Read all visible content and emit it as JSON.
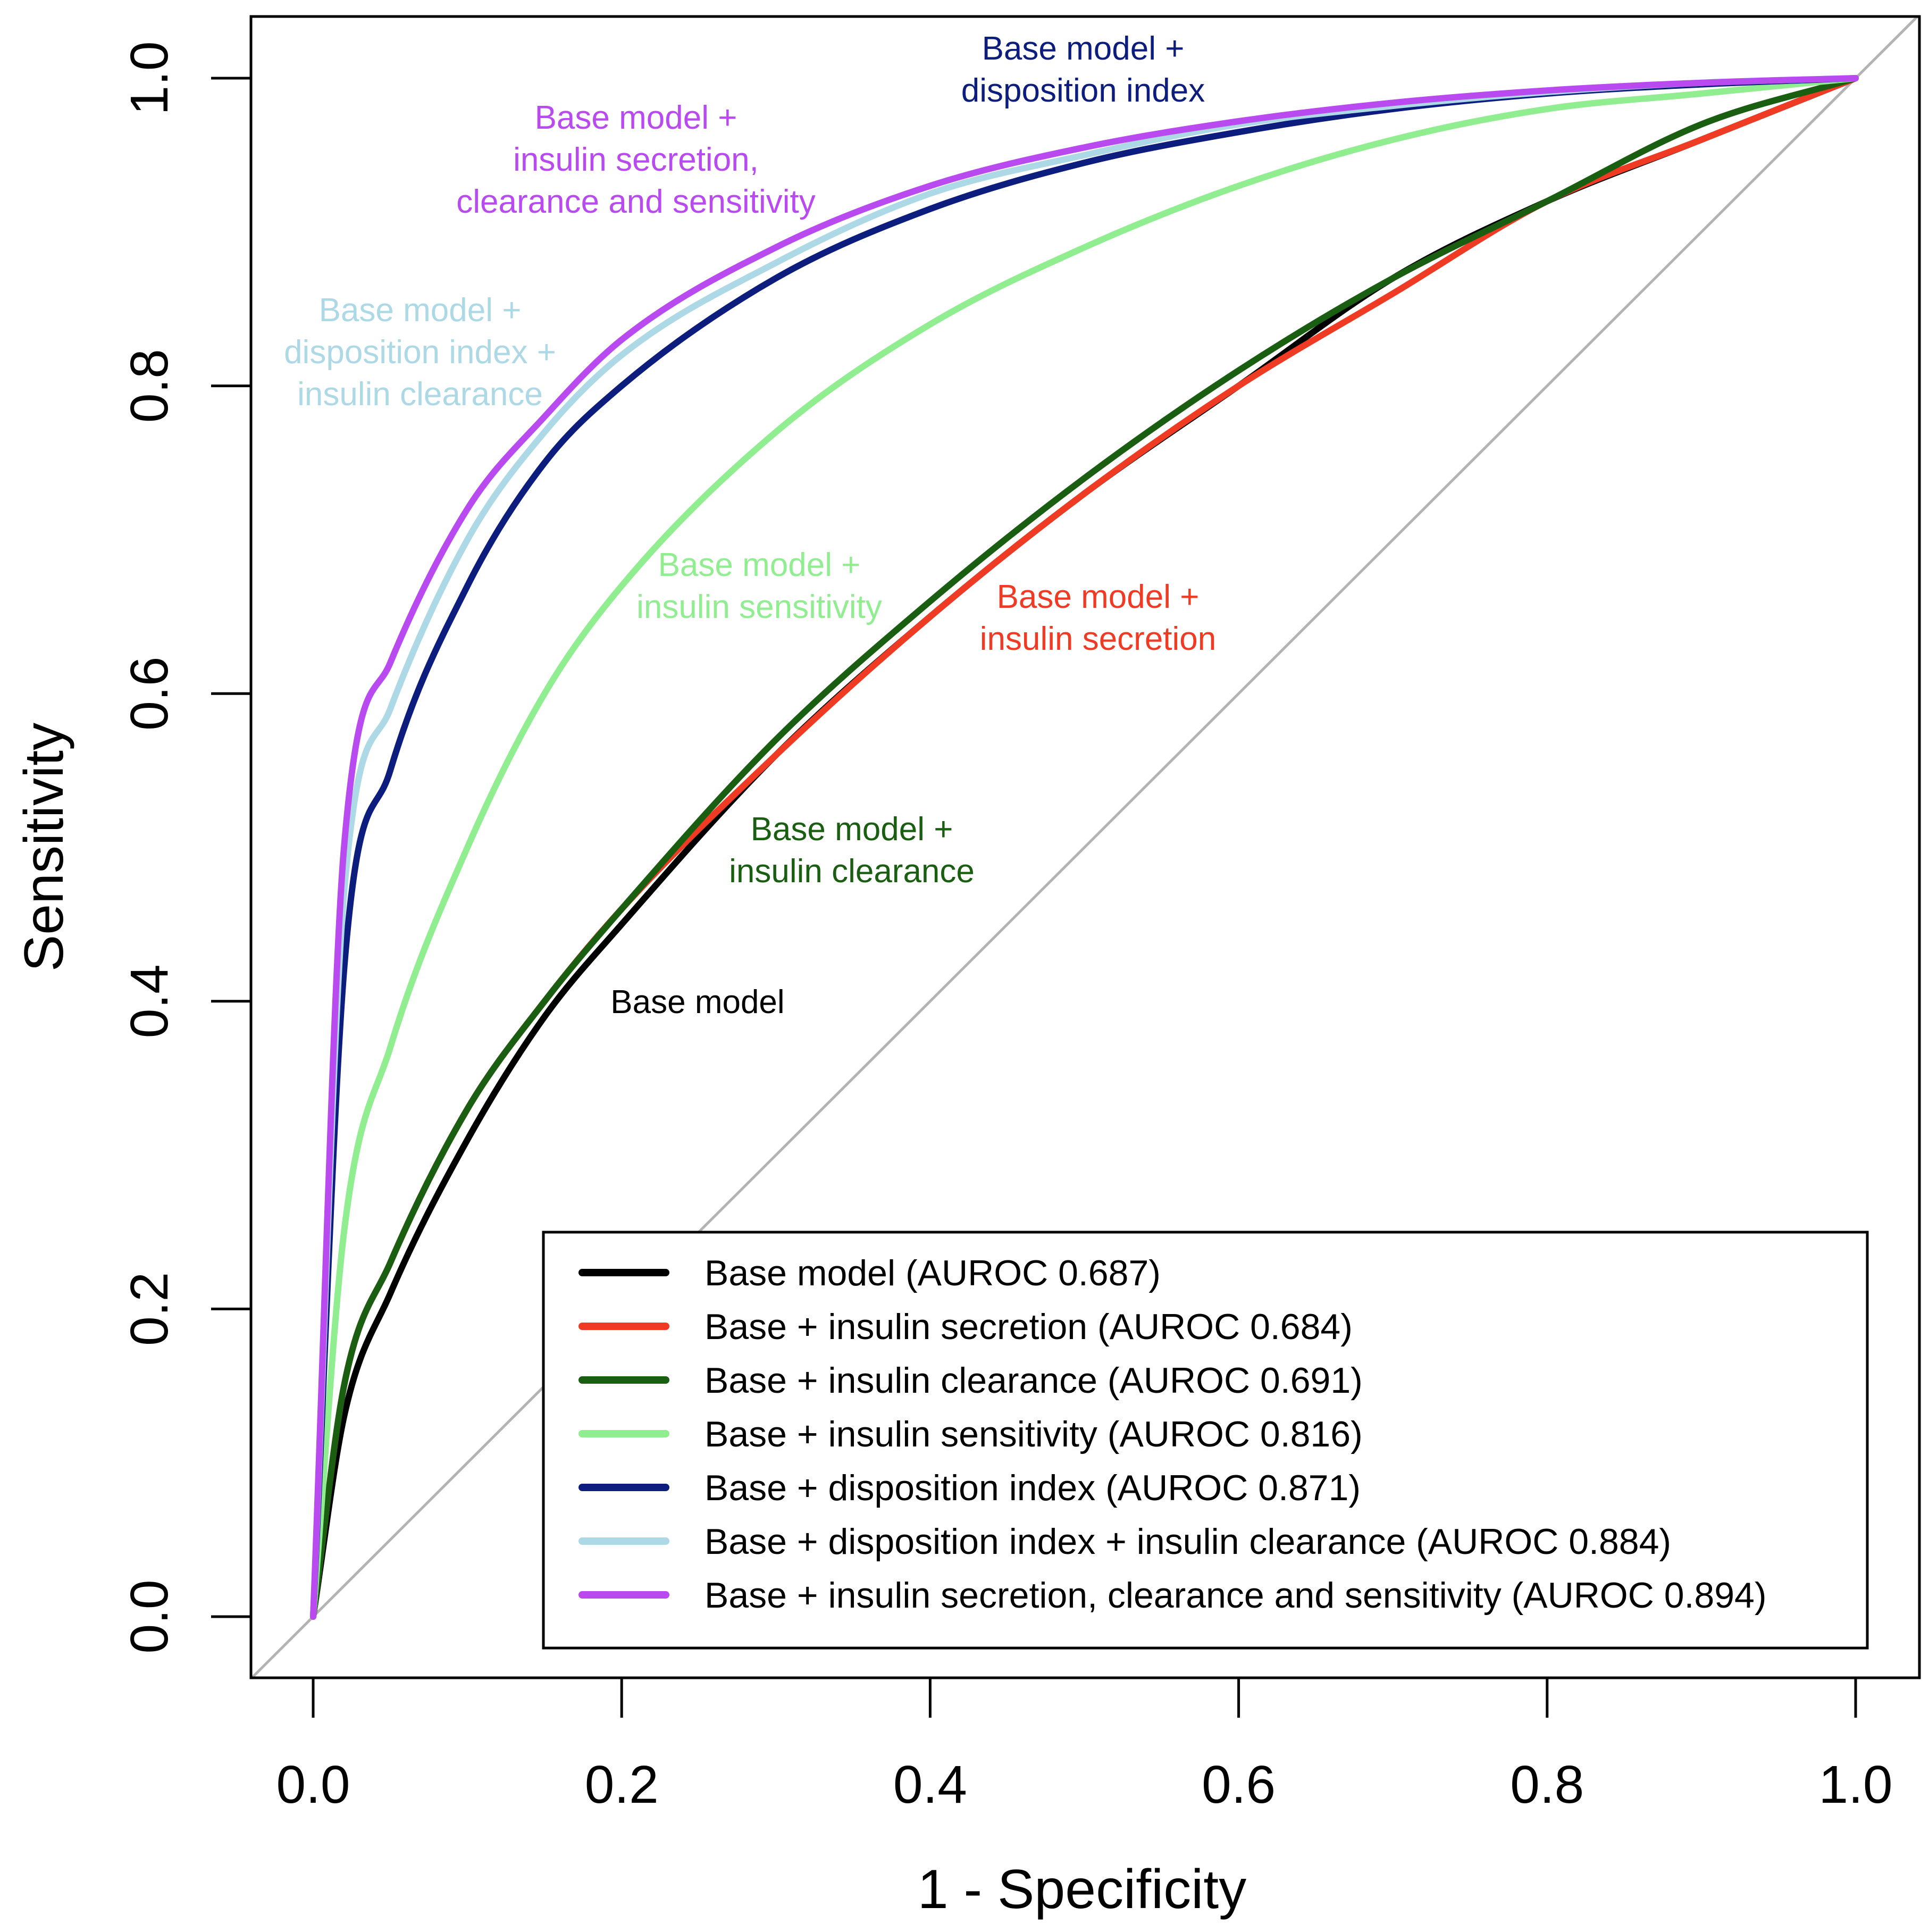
{
  "chart_data": {
    "type": "line",
    "title": "",
    "xlabel": "1 - Specificity",
    "ylabel": "Sensitivity",
    "xlim": [
      -0.04,
      1.04
    ],
    "ylim": [
      -0.04,
      1.04
    ],
    "x_ticks": [
      "0.0",
      "0.2",
      "0.4",
      "0.6",
      "0.8",
      "1.0"
    ],
    "y_ticks": [
      "0.0",
      "0.2",
      "0.4",
      "0.6",
      "0.8",
      "1.0"
    ],
    "grid": false,
    "reference_line": {
      "x": [
        0,
        1
      ],
      "y": [
        0,
        1
      ],
      "color": "#b3b3b3"
    },
    "legend_position": "bottom-right",
    "series": [
      {
        "name": "Base model (AUROC 0.687)",
        "color": "#000000",
        "x": [
          0,
          0.02,
          0.05,
          0.1,
          0.15,
          0.2,
          0.3,
          0.4,
          0.5,
          0.6,
          0.7,
          0.8,
          0.9,
          1.0
        ],
        "y": [
          0,
          0.13,
          0.21,
          0.31,
          0.39,
          0.45,
          0.56,
          0.65,
          0.73,
          0.8,
          0.87,
          0.92,
          0.96,
          1.0
        ],
        "label_lines": [
          "Base model"
        ]
      },
      {
        "name": "Base + insulin secretion (AUROC 0.684)",
        "color": "#ef3b24",
        "x": [
          0,
          0.02,
          0.05,
          0.1,
          0.15,
          0.2,
          0.3,
          0.4,
          0.5,
          0.6,
          0.7,
          0.8,
          0.9,
          1.0
        ],
        "y": [
          0,
          0.15,
          0.23,
          0.33,
          0.4,
          0.46,
          0.56,
          0.65,
          0.73,
          0.8,
          0.86,
          0.92,
          0.96,
          1.0
        ],
        "label_lines": [
          "Base model +",
          "insulin secretion"
        ]
      },
      {
        "name": "Base + insulin clearance (AUROC 0.691)",
        "color": "#1a5e12",
        "x": [
          0,
          0.02,
          0.05,
          0.1,
          0.15,
          0.2,
          0.3,
          0.4,
          0.5,
          0.6,
          0.7,
          0.8,
          0.9,
          1.0
        ],
        "y": [
          0,
          0.15,
          0.23,
          0.33,
          0.4,
          0.46,
          0.57,
          0.66,
          0.74,
          0.81,
          0.87,
          0.92,
          0.97,
          1.0
        ],
        "label_lines": [
          "Base model +",
          "insulin clearance"
        ]
      },
      {
        "name": "Base + insulin sensitivity (AUROC 0.816)",
        "color": "#90ee90",
        "x": [
          0,
          0.02,
          0.05,
          0.1,
          0.15,
          0.2,
          0.3,
          0.4,
          0.5,
          0.6,
          0.7,
          0.8,
          0.9,
          1.0
        ],
        "y": [
          0,
          0.25,
          0.37,
          0.5,
          0.6,
          0.67,
          0.77,
          0.84,
          0.89,
          0.93,
          0.96,
          0.98,
          0.99,
          1.0
        ],
        "label_lines": [
          "Base model +",
          "insulin sensitivity"
        ]
      },
      {
        "name": "Base + disposition index (AUROC 0.871)",
        "color": "#0c1d7d",
        "x": [
          0,
          0.02,
          0.05,
          0.1,
          0.15,
          0.2,
          0.3,
          0.4,
          0.5,
          0.6,
          0.7,
          0.8,
          0.9,
          1.0
        ],
        "y": [
          0,
          0.42,
          0.55,
          0.67,
          0.75,
          0.8,
          0.87,
          0.915,
          0.945,
          0.965,
          0.98,
          0.99,
          0.996,
          1.0
        ],
        "label_lines": [
          "Base model +",
          "disposition index"
        ]
      },
      {
        "name": "Base + disposition index + insulin clearance (AUROC 0.884)",
        "color": "#add8e6",
        "x": [
          0,
          0.02,
          0.05,
          0.1,
          0.15,
          0.2,
          0.3,
          0.4,
          0.5,
          0.6,
          0.7,
          0.8,
          0.9,
          1.0
        ],
        "y": [
          0,
          0.47,
          0.59,
          0.7,
          0.77,
          0.82,
          0.88,
          0.925,
          0.95,
          0.97,
          0.982,
          0.991,
          0.997,
          1.0
        ],
        "label_lines": [
          "Base model +",
          "disposition index +",
          "insulin clearance"
        ]
      },
      {
        "name": "Base + insulin secretion, clearance and sensitivity (AUROC 0.894)",
        "color": "#b84af0",
        "x": [
          0,
          0.02,
          0.05,
          0.1,
          0.15,
          0.2,
          0.3,
          0.4,
          0.5,
          0.6,
          0.7,
          0.8,
          0.9,
          1.0
        ],
        "y": [
          0,
          0.5,
          0.62,
          0.72,
          0.78,
          0.83,
          0.89,
          0.93,
          0.955,
          0.972,
          0.984,
          0.992,
          0.997,
          1.0
        ],
        "label_lines": [
          "Base model +",
          "insulin secretion,",
          "clearance and sensitivity"
        ]
      }
    ]
  }
}
